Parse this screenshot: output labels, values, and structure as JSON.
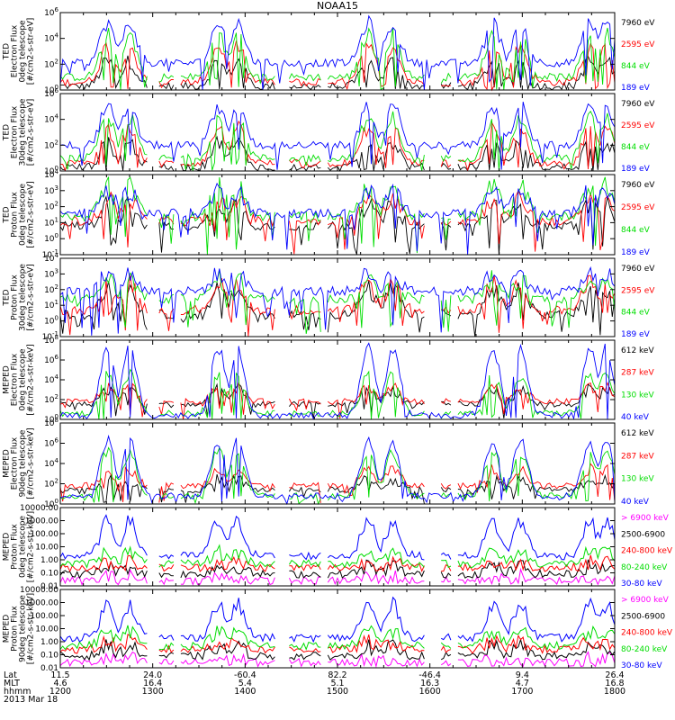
{
  "title": "NOAA15",
  "colors": {
    "blue": "#0000ff",
    "red": "#ff0000",
    "green": "#00dd00",
    "black": "#000000",
    "magenta": "#ff00ff",
    "axis": "#000000"
  },
  "chart_data": [
    {
      "type": "line",
      "panel": 1,
      "ylabel": [
        "TED",
        "Electron Flux",
        "0deg telescope",
        "[#/cm2-s-str-eV]"
      ],
      "yscale": "log",
      "ylim": [
        1,
        1000000
      ],
      "yticks": [
        "10^0",
        "10^2",
        "10^4",
        "10^6"
      ],
      "series": [
        {
          "name": "7960 eV",
          "color": "black",
          "baseline": 0.3,
          "peak": 2.2
        },
        {
          "name": "2595 eV",
          "color": "red",
          "baseline": 0.6,
          "peak": 3.4
        },
        {
          "name": "844 eV",
          "color": "green",
          "baseline": 1.0,
          "peak": 4.3
        },
        {
          "name": "189 eV",
          "color": "blue",
          "baseline": 2.1,
          "peak": 5.2
        }
      ]
    },
    {
      "type": "line",
      "panel": 2,
      "ylabel": [
        "TED",
        "Electron Flux",
        "30deg telescope",
        "[#/cm2-s-str-eV]"
      ],
      "yscale": "log",
      "ylim": [
        1,
        1000000
      ],
      "yticks": [
        "10^0",
        "10^2",
        "10^4",
        "10^6"
      ],
      "series": [
        {
          "name": "7960 eV",
          "color": "black",
          "baseline": 0.3,
          "peak": 2.2
        },
        {
          "name": "2595 eV",
          "color": "red",
          "baseline": 0.6,
          "peak": 3.3
        },
        {
          "name": "844 eV",
          "color": "green",
          "baseline": 1.0,
          "peak": 4.1
        },
        {
          "name": "189 eV",
          "color": "blue",
          "baseline": 2.0,
          "peak": 5.0
        }
      ]
    },
    {
      "type": "line",
      "panel": 3,
      "ylabel": [
        "TED",
        "Proton Flux",
        "0deg telescope",
        "[#/cm2-s-str-eV]"
      ],
      "yscale": "log",
      "ylim": [
        0.1,
        10000
      ],
      "yticks": [
        "10^-1",
        "10^0",
        "10^1",
        "10^2",
        "10^3",
        "10^4"
      ],
      "series": [
        {
          "name": "7960 eV",
          "color": "black",
          "baseline": 0.8,
          "peak": 2.1
        },
        {
          "name": "2595 eV",
          "color": "red",
          "baseline": 1.1,
          "peak": 2.5
        },
        {
          "name": "844 eV",
          "color": "green",
          "baseline": 1.4,
          "peak": 3.3
        },
        {
          "name": "189 eV",
          "color": "blue",
          "baseline": 1.6,
          "peak": 3.0
        }
      ]
    },
    {
      "type": "line",
      "panel": 4,
      "ylabel": [
        "TED",
        "Proton Flux",
        "30deg telescope",
        "[#/cm2-s-str-eV]"
      ],
      "yscale": "log",
      "ylim": [
        0.1,
        10000
      ],
      "yticks": [
        "10^-1",
        "10^0",
        "10^1",
        "10^2",
        "10^3",
        "10^4"
      ],
      "series": [
        {
          "name": "7960 eV",
          "color": "black",
          "baseline": 0.4,
          "peak": 2.0
        },
        {
          "name": "2595 eV",
          "color": "red",
          "baseline": 0.7,
          "peak": 2.4
        },
        {
          "name": "844 eV",
          "color": "green",
          "baseline": 1.4,
          "peak": 2.7
        },
        {
          "name": "189 eV",
          "color": "blue",
          "baseline": 1.9,
          "peak": 3.0
        }
      ]
    },
    {
      "type": "line",
      "panel": 5,
      "ylabel": [
        "MEPED",
        "Electron Flux",
        "0deg telescope",
        "[#/cm2-s-str-keV]"
      ],
      "yscale": "log",
      "ylim": [
        1,
        100000000
      ],
      "yticks": [
        "10^0",
        "10^2",
        "10^4",
        "10^6",
        "10^8"
      ],
      "series": [
        {
          "name": "612 keV",
          "color": "black",
          "baseline": 1.5,
          "peak": 3.0
        },
        {
          "name": "287 keV",
          "color": "red",
          "baseline": 1.8,
          "peak": 3.3
        },
        {
          "name": "130 keV",
          "color": "green",
          "baseline": 0.6,
          "peak": 4.5
        },
        {
          "name": "40 keV",
          "color": "blue",
          "baseline": 0.4,
          "peak": 7.2
        }
      ]
    },
    {
      "type": "line",
      "panel": 6,
      "ylabel": [
        "MEPED",
        "Electron Flux",
        "90deg telescope",
        "[#/cm2-s-str-keV]"
      ],
      "yscale": "log",
      "ylim": [
        1,
        100000000
      ],
      "yticks": [
        "10^0",
        "10^2",
        "10^4",
        "10^6",
        "10^8"
      ],
      "series": [
        {
          "name": "612 keV",
          "color": "black",
          "baseline": 1.4,
          "peak": 2.4
        },
        {
          "name": "287 keV",
          "color": "red",
          "baseline": 1.8,
          "peak": 3.4
        },
        {
          "name": "130 keV",
          "color": "green",
          "baseline": 0.8,
          "peak": 5.2
        },
        {
          "name": "40 keV",
          "color": "blue",
          "baseline": 0.8,
          "peak": 6.2
        }
      ]
    },
    {
      "type": "line",
      "panel": 7,
      "ylabel": [
        "MEPED",
        "Proton Flux",
        "0deg telescope",
        "[#/cm2-s-str-keV]"
      ],
      "yscale": "log",
      "ylim": [
        0.01,
        10000
      ],
      "yticks": [
        "0.01",
        "0.10",
        "1.00",
        "10.00",
        "100.00",
        "1000.00",
        "10000.00"
      ],
      "series": [
        {
          "name": "> 6900 keV",
          "color": "magenta",
          "baseline": -1.6,
          "peak": -1.3
        },
        {
          "name": "2500-6900",
          "color": "black",
          "baseline": -1.1,
          "peak": -0.5
        },
        {
          "name": "240-800 keV",
          "color": "red",
          "baseline": -0.6,
          "peak": -0.2
        },
        {
          "name": "80-240 keV",
          "color": "green",
          "baseline": -0.3,
          "peak": 0.6
        },
        {
          "name": "30-80 keV",
          "color": "blue",
          "baseline": 0.3,
          "peak": 2.9
        }
      ]
    },
    {
      "type": "line",
      "panel": 8,
      "ylabel": [
        "MEPED",
        "Proton Flux",
        "90deg telescope",
        "[#/cm2-s-str-keV]"
      ],
      "yscale": "log",
      "ylim": [
        0.01,
        10000
      ],
      "yticks": [
        "0.01",
        "0.10",
        "1.00",
        "10.00",
        "100.00",
        "1000.00",
        "10000.00"
      ],
      "series": [
        {
          "name": "> 6900 keV",
          "color": "magenta",
          "baseline": -1.6,
          "peak": -1.3
        },
        {
          "name": "2500-6900",
          "color": "black",
          "baseline": -1.1,
          "peak": -0.4
        },
        {
          "name": "240-800 keV",
          "color": "red",
          "baseline": -0.6,
          "peak": 0.0
        },
        {
          "name": "80-240 keV",
          "color": "green",
          "baseline": -0.3,
          "peak": 0.8
        },
        {
          "name": "30-80 keV",
          "color": "blue",
          "baseline": 0.3,
          "peak": 2.8
        }
      ]
    }
  ],
  "x_axis": {
    "row_labels": [
      "Lat",
      "MLT",
      "hhmm"
    ],
    "date": "2013 Mar 18",
    "columns": [
      {
        "lat": "11.5",
        "mlt": "4.6",
        "hhmm": "1200"
      },
      {
        "lat": "24.0",
        "mlt": "16.4",
        "hhmm": "1300"
      },
      {
        "lat": "-60.4",
        "mlt": "5.4",
        "hhmm": "1400"
      },
      {
        "lat": "82.2",
        "mlt": "5.1",
        "hhmm": "1500"
      },
      {
        "lat": "-46.4",
        "mlt": "16.3",
        "hhmm": "1600"
      },
      {
        "lat": "9.4",
        "mlt": "4.7",
        "hhmm": "1700"
      },
      {
        "lat": "26.4",
        "mlt": "16.8",
        "hhmm": "1800"
      }
    ]
  }
}
